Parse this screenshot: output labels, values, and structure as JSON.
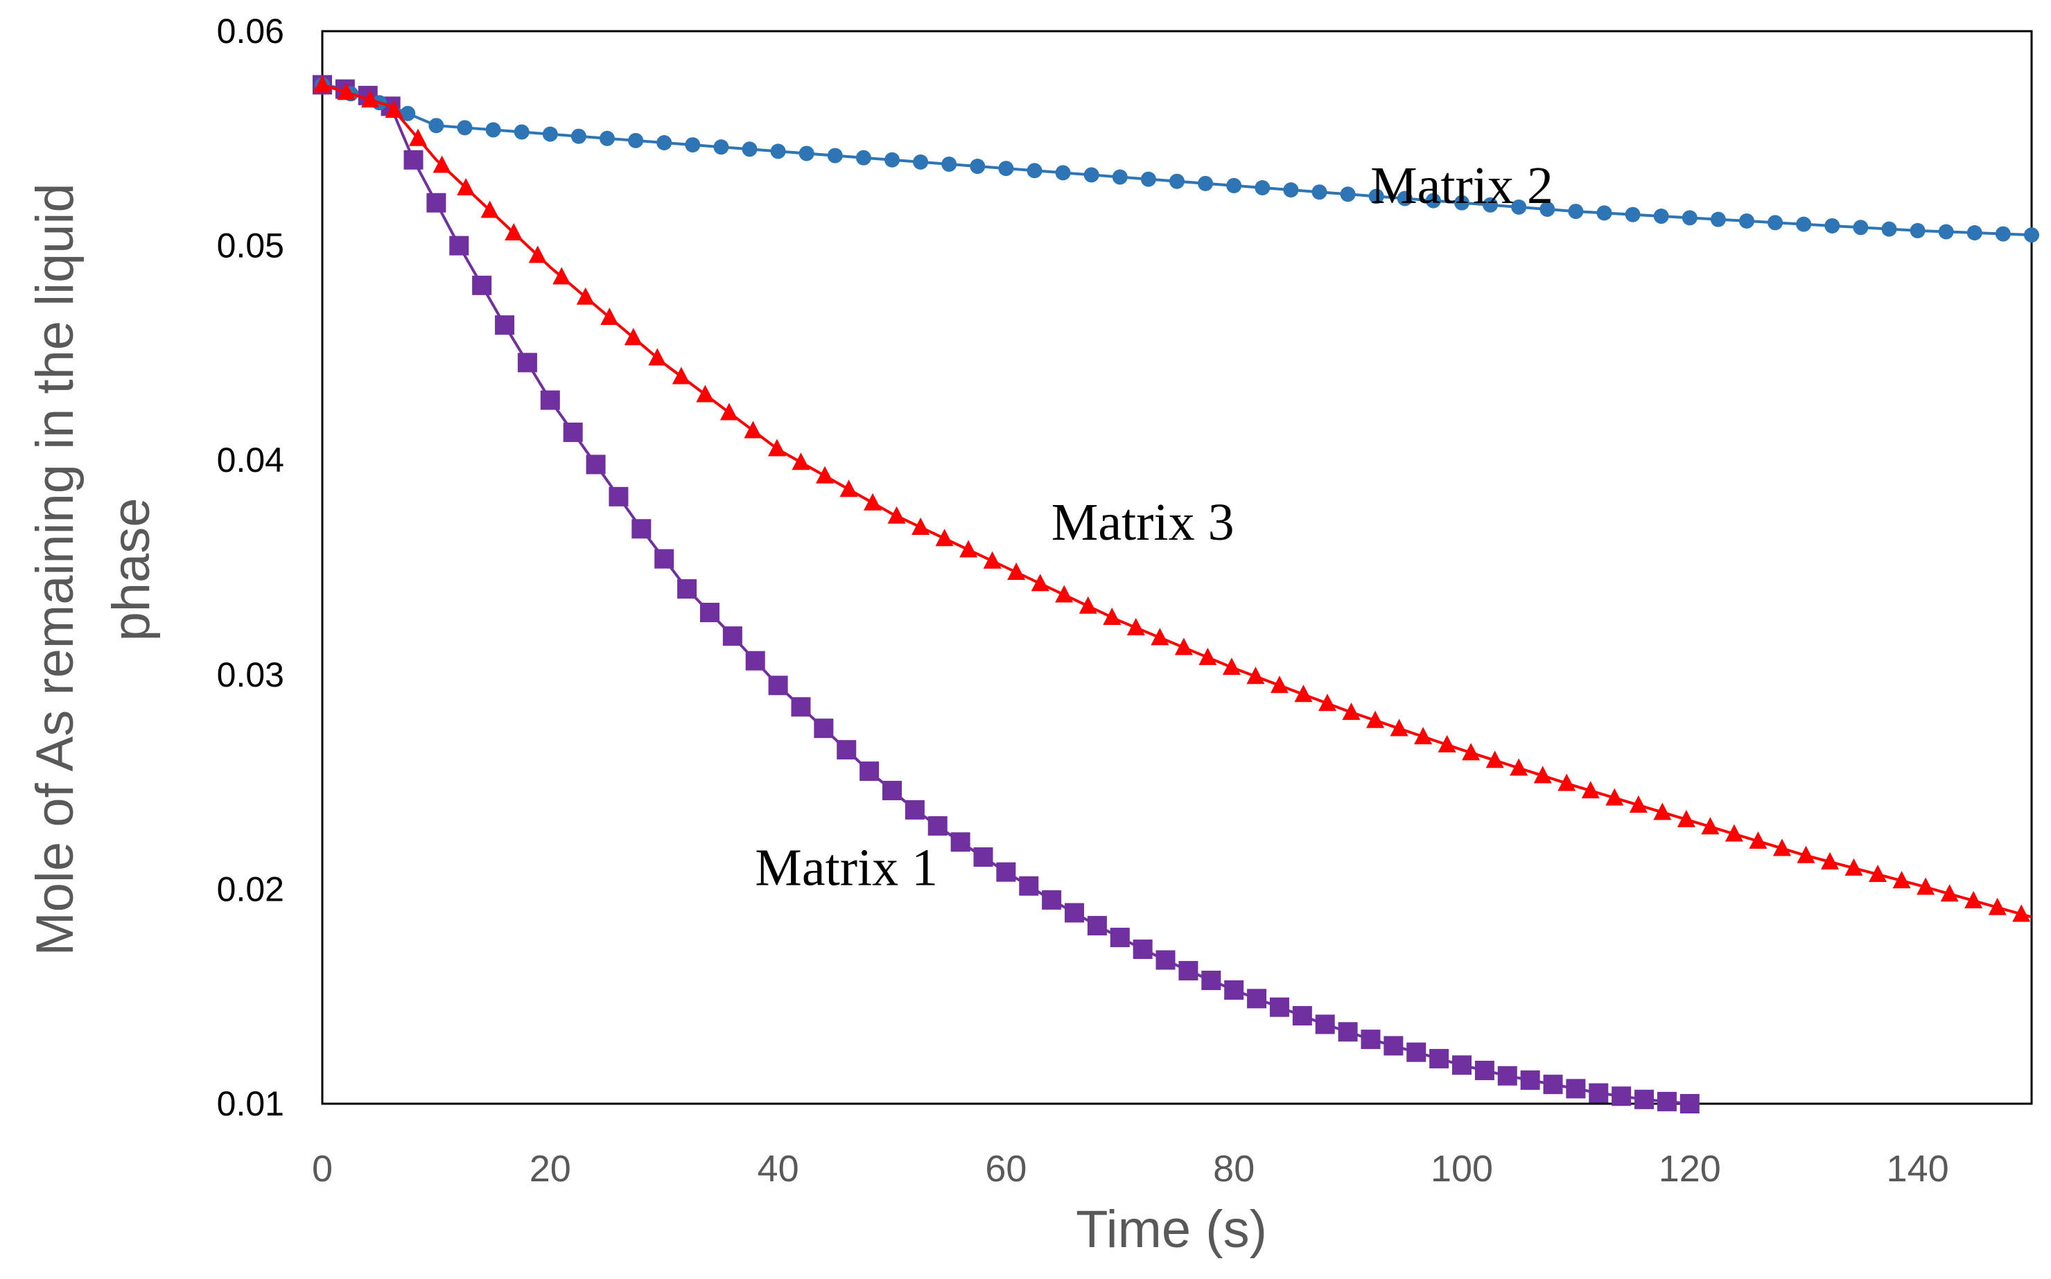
{
  "chart_data": {
    "type": "scatter",
    "title": "",
    "xlabel": "Time (s)",
    "ylabel_line1": "Mole of As remaining in the liquid",
    "ylabel_line2": "phase",
    "xlim": [
      0,
      150
    ],
    "ylim": [
      0.01,
      0.06
    ],
    "xticks": [
      "0",
      "20",
      "40",
      "60",
      "80",
      "100",
      "120",
      "140"
    ],
    "xtick_values": [
      0,
      20,
      40,
      60,
      80,
      100,
      120,
      140
    ],
    "yticks": [
      "0.01",
      "0.02",
      "0.03",
      "0.04",
      "0.05",
      "0.06"
    ],
    "ytick_values": [
      0.01,
      0.02,
      0.03,
      0.04,
      0.05,
      0.06
    ],
    "grid": false,
    "series": [
      {
        "name": "Matrix 1",
        "marker": "square",
        "color": "#7030A0",
        "x": [
          0,
          2,
          4,
          6,
          8,
          12,
          16,
          20,
          24,
          28,
          32,
          36,
          40,
          44,
          48,
          52,
          56,
          60,
          64,
          68,
          72,
          76,
          80,
          84,
          88,
          92,
          96,
          100,
          104,
          108,
          112,
          116,
          120
        ],
        "y": [
          0.0575,
          0.0573,
          0.057,
          0.0565,
          0.054,
          0.05,
          0.0463,
          0.0428,
          0.0398,
          0.0368,
          0.034,
          0.0318,
          0.0295,
          0.0275,
          0.0255,
          0.0237,
          0.0222,
          0.0208,
          0.0195,
          0.0183,
          0.0172,
          0.0162,
          0.0153,
          0.0145,
          0.0137,
          0.013,
          0.0124,
          0.0118,
          0.0113,
          0.0109,
          0.0105,
          0.0102,
          0.01
        ]
      },
      {
        "name": "Matrix 2",
        "marker": "circle",
        "color": "#2E75B6",
        "x": [
          0,
          3,
          6,
          10,
          20,
          30,
          40,
          50,
          60,
          70,
          80,
          90,
          100,
          110,
          120,
          130,
          140,
          150
        ],
        "y": [
          0.0575,
          0.057,
          0.0565,
          0.0556,
          0.0552,
          0.0548,
          0.0544,
          0.054,
          0.0536,
          0.0532,
          0.0528,
          0.0524,
          0.052,
          0.0516,
          0.0513,
          0.051,
          0.0507,
          0.0505
        ]
      },
      {
        "name": "Matrix 3",
        "marker": "triangle",
        "color": "#FF0000",
        "x": [
          0,
          3,
          6,
          10,
          20,
          30,
          40,
          50,
          60,
          70,
          80,
          90,
          100,
          110,
          120,
          130,
          140,
          150
        ],
        "y": [
          0.0575,
          0.057,
          0.0565,
          0.054,
          0.049,
          0.0445,
          0.0405,
          0.0375,
          0.035,
          0.0325,
          0.0303,
          0.0283,
          0.0265,
          0.0248,
          0.0232,
          0.0216,
          0.0202,
          0.0187
        ]
      }
    ],
    "annotations": [
      {
        "text": "Matrix 2",
        "x": 100,
        "y": 0.0527
      },
      {
        "text": "Matrix 3",
        "x": 72,
        "y": 0.037
      },
      {
        "text": "Matrix 1",
        "x": 46,
        "y": 0.0209
      }
    ]
  }
}
